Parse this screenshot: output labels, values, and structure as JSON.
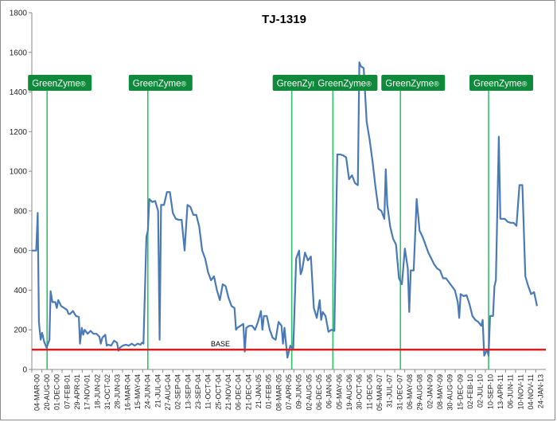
{
  "chart_data": {
    "type": "line",
    "title": "TJ-1319",
    "xlabel": "",
    "ylabel": "",
    "ylim": [
      0,
      1800
    ],
    "yticks": [
      0,
      200,
      400,
      600,
      800,
      1000,
      1200,
      1400,
      1600,
      1800
    ],
    "x_tick_labels": [
      "04-MAR-00",
      "20-AUG-00",
      "01-DEC-00",
      "07-FEB-01",
      "29-APR-01",
      "17-NOV-01",
      "18-JUN-02",
      "31-OCT-02",
      "28-JUN-03",
      "16-MAR-04",
      "15-MAY-04",
      "24-JUN-04",
      "21-JUL-04",
      "27-AUG-04",
      "02-SEP-04",
      "13-SEP-04",
      "23-SEP-04",
      "11-OCT-04",
      "25-OCT-04",
      "21-NOV-04",
      "06-DEC-04",
      "21-DEC-04",
      "21-JAN-05",
      "01-FEB-05",
      "08-MAR-05",
      "07-APR-05",
      "09-JUN-05",
      "02-AUG-05",
      "06-DEC-05",
      "06-JAN-06",
      "05-MAY-06",
      "19-AUG-06",
      "30-OCT-06",
      "11-DEC-06",
      "05-MAR-07",
      "31-JUL-07",
      "31-DEC-07",
      "06-MAY-08",
      "29-AUG-08",
      "02-JAN-09",
      "08-MAY-09",
      "30-AUG-09",
      "15-DEC-09",
      "02-FEB-10",
      "02-JUL-10",
      "10-SEP-10",
      "13-APR-11",
      "06-JUN-11",
      "10-NOV-11",
      "04-NOV-11",
      "24-JAN-13"
    ],
    "series": [
      {
        "color": "#4a7ab5",
        "values": [
          [
            0,
            600
          ],
          [
            1.5,
            600
          ],
          [
            2,
            790
          ],
          [
            2.4,
            240
          ],
          [
            3,
            150
          ],
          [
            3.5,
            185
          ],
          [
            4.2,
            140
          ],
          [
            5,
            110
          ],
          [
            6,
            150
          ],
          [
            6.4,
            395
          ],
          [
            7,
            340
          ],
          [
            8,
            340
          ],
          [
            8.5,
            310
          ],
          [
            9,
            350
          ],
          [
            10,
            320
          ],
          [
            11,
            310
          ],
          [
            12,
            300
          ],
          [
            12.5,
            280
          ],
          [
            13,
            280
          ],
          [
            14,
            295
          ],
          [
            15,
            270
          ],
          [
            16,
            265
          ],
          [
            16.4,
            130
          ],
          [
            17,
            210
          ],
          [
            17.5,
            175
          ],
          [
            18,
            200
          ],
          [
            19,
            180
          ],
          [
            20,
            195
          ],
          [
            21,
            180
          ],
          [
            22,
            180
          ],
          [
            23,
            165
          ],
          [
            23.5,
            130
          ],
          [
            24,
            160
          ],
          [
            25,
            175
          ],
          [
            25.5,
            120
          ],
          [
            26,
            125
          ],
          [
            27,
            120
          ],
          [
            28,
            145
          ],
          [
            29,
            135
          ],
          [
            29.5,
            95
          ],
          [
            30,
            110
          ],
          [
            31,
            120
          ],
          [
            32,
            125
          ],
          [
            33,
            120
          ],
          [
            34,
            130
          ],
          [
            35,
            120
          ],
          [
            36,
            130
          ],
          [
            37,
            125
          ],
          [
            37.5,
            135
          ],
          [
            38,
            130
          ],
          [
            39,
            670
          ],
          [
            39.5,
            700
          ],
          [
            40,
            860
          ],
          [
            41,
            845
          ],
          [
            42,
            850
          ],
          [
            43,
            800
          ],
          [
            43.5,
            150
          ],
          [
            44,
            830
          ],
          [
            45,
            830
          ],
          [
            46,
            895
          ],
          [
            47,
            895
          ],
          [
            48,
            790
          ],
          [
            49,
            760
          ],
          [
            50,
            755
          ],
          [
            51,
            755
          ],
          [
            52,
            600
          ],
          [
            53,
            830
          ],
          [
            54,
            820
          ],
          [
            55,
            780
          ],
          [
            56,
            780
          ],
          [
            57,
            720
          ],
          [
            58,
            600
          ],
          [
            59,
            560
          ],
          [
            60,
            490
          ],
          [
            61,
            450
          ],
          [
            62,
            470
          ],
          [
            63,
            400
          ],
          [
            64,
            350
          ],
          [
            65,
            430
          ],
          [
            66,
            420
          ],
          [
            67,
            360
          ],
          [
            68,
            320
          ],
          [
            69,
            310
          ],
          [
            69.5,
            200
          ],
          [
            70,
            210
          ],
          [
            71,
            220
          ],
          [
            72,
            230
          ],
          [
            72.5,
            90
          ],
          [
            73,
            210
          ],
          [
            74,
            220
          ],
          [
            75,
            220
          ],
          [
            76,
            200
          ],
          [
            77,
            240
          ],
          [
            78,
            295
          ],
          [
            78.5,
            200
          ],
          [
            79,
            270
          ],
          [
            80,
            270
          ],
          [
            81,
            200
          ],
          [
            82,
            160
          ],
          [
            83,
            150
          ],
          [
            84,
            240
          ],
          [
            85,
            220
          ],
          [
            85.5,
            130
          ],
          [
            86,
            210
          ],
          [
            87,
            60
          ],
          [
            88,
            120
          ],
          [
            89,
            100
          ],
          [
            90,
            560
          ],
          [
            91,
            600
          ],
          [
            91.5,
            480
          ],
          [
            92,
            500
          ],
          [
            93,
            590
          ],
          [
            94,
            550
          ],
          [
            95,
            570
          ],
          [
            96,
            310
          ],
          [
            97,
            260
          ],
          [
            98,
            350
          ],
          [
            98.5,
            250
          ],
          [
            99,
            290
          ],
          [
            100,
            270
          ],
          [
            101,
            190
          ],
          [
            102,
            200
          ],
          [
            103,
            195
          ],
          [
            104,
            1085
          ],
          [
            105,
            1085
          ],
          [
            106,
            1080
          ],
          [
            107,
            1070
          ],
          [
            108,
            960
          ],
          [
            109,
            980
          ],
          [
            110,
            940
          ],
          [
            111,
            930
          ],
          [
            111.5,
            1550
          ],
          [
            112,
            1530
          ],
          [
            113,
            1520
          ],
          [
            114,
            1250
          ],
          [
            115,
            1160
          ],
          [
            116,
            1050
          ],
          [
            117,
            920
          ],
          [
            118,
            810
          ],
          [
            119,
            800
          ],
          [
            120,
            760
          ],
          [
            120.5,
            1010
          ],
          [
            121,
            830
          ],
          [
            122,
            720
          ],
          [
            123,
            660
          ],
          [
            124,
            630
          ],
          [
            125,
            460
          ],
          [
            126,
            430
          ],
          [
            127,
            610
          ],
          [
            128,
            510
          ],
          [
            128.5,
            290
          ],
          [
            129,
            500
          ],
          [
            130,
            500
          ],
          [
            131,
            860
          ],
          [
            132,
            700
          ],
          [
            133,
            670
          ],
          [
            134,
            630
          ],
          [
            135,
            590
          ],
          [
            136,
            560
          ],
          [
            137,
            530
          ],
          [
            138,
            510
          ],
          [
            139,
            500
          ],
          [
            140,
            460
          ],
          [
            141,
            460
          ],
          [
            142,
            440
          ],
          [
            143,
            420
          ],
          [
            144,
            400
          ],
          [
            145,
            340
          ],
          [
            145.5,
            260
          ],
          [
            146,
            380
          ],
          [
            147,
            370
          ],
          [
            148,
            375
          ],
          [
            149,
            330
          ],
          [
            150,
            270
          ],
          [
            151,
            250
          ],
          [
            152,
            240
          ],
          [
            153,
            220
          ],
          [
            153.5,
            250
          ],
          [
            154,
            70
          ],
          [
            155,
            100
          ],
          [
            155.5,
            70
          ],
          [
            156,
            270
          ],
          [
            157,
            270
          ],
          [
            157.5,
            420
          ],
          [
            158,
            450
          ],
          [
            159,
            1175
          ],
          [
            159.5,
            760
          ],
          [
            160,
            760
          ],
          [
            161,
            760
          ],
          [
            162,
            745
          ],
          [
            163,
            740
          ],
          [
            164,
            740
          ],
          [
            165,
            725
          ],
          [
            166,
            930
          ],
          [
            167,
            930
          ],
          [
            168,
            470
          ],
          [
            169,
            420
          ],
          [
            170,
            380
          ],
          [
            171,
            390
          ],
          [
            172,
            320
          ]
        ]
      }
    ],
    "x_max": 175,
    "base_line": {
      "label": "BASE",
      "value": 100,
      "color": "#d81e1e"
    },
    "greenzyme": {
      "label": "GreenZyme",
      "mark": "®",
      "color": "#0e8a3a",
      "line_color": "#2ec26a",
      "positions": [
        5.2,
        39.5,
        88.5,
        102.5,
        125.5,
        155.5
      ]
    },
    "grid": false,
    "legend": "none"
  }
}
